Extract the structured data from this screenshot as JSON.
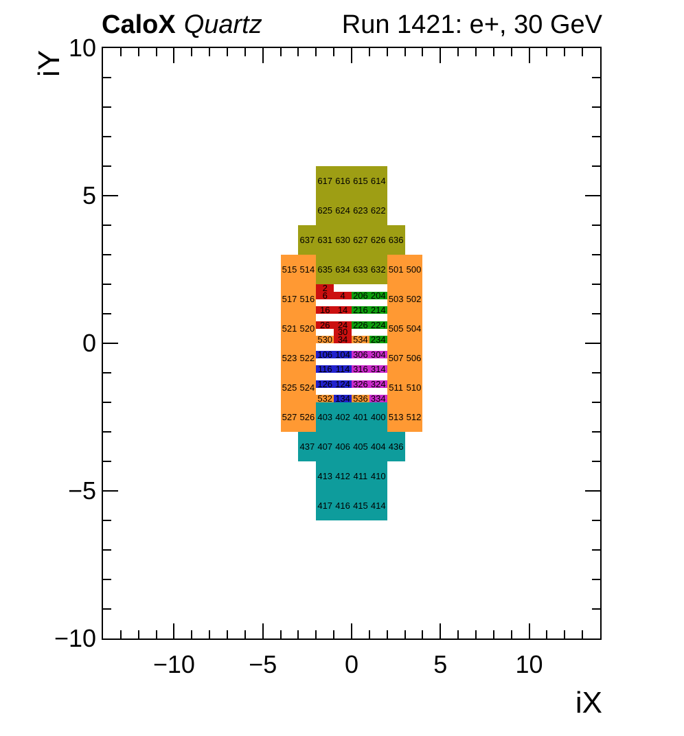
{
  "header": {
    "brand_bold": "CaloX",
    "brand_italic": "Quartz",
    "run_label": "Run 1421: e+, 30 GeV"
  },
  "chart_data": {
    "type": "heatmap",
    "title": "CaloX Quartz",
    "subtitle": "Run 1421: e+, 30 GeV",
    "xlabel": "iX",
    "ylabel": "iY",
    "xlim": [
      -14,
      14
    ],
    "ylim": [
      -10,
      10
    ],
    "x_major_ticks": [
      -10,
      -5,
      0,
      5,
      10
    ],
    "y_major_ticks": [
      -10,
      -5,
      0,
      5,
      10
    ],
    "minor_tick_step": 1,
    "grid": false,
    "legend": "none",
    "palette": {
      "olive": "#9e9e14",
      "orange": "#ff9933",
      "red": "#cc1010",
      "green": "#0d9f0d",
      "blue": "#2121cd",
      "magenta": "#cc29cc",
      "teal": "#0e9c9c"
    },
    "cells": [
      {
        "id": "617",
        "x": -2,
        "y": 6,
        "w": 1,
        "h": 1,
        "color": "olive"
      },
      {
        "id": "616",
        "x": -1,
        "y": 6,
        "w": 1,
        "h": 1,
        "color": "olive"
      },
      {
        "id": "615",
        "x": 0,
        "y": 6,
        "w": 1,
        "h": 1,
        "color": "olive"
      },
      {
        "id": "614",
        "x": 1,
        "y": 6,
        "w": 1,
        "h": 1,
        "color": "olive"
      },
      {
        "id": "625",
        "x": -2,
        "y": 5,
        "w": 1,
        "h": 1,
        "color": "olive"
      },
      {
        "id": "624",
        "x": -1,
        "y": 5,
        "w": 1,
        "h": 1,
        "color": "olive"
      },
      {
        "id": "623",
        "x": 0,
        "y": 5,
        "w": 1,
        "h": 1,
        "color": "olive"
      },
      {
        "id": "622",
        "x": 1,
        "y": 5,
        "w": 1,
        "h": 1,
        "color": "olive"
      },
      {
        "id": "637",
        "x": -3,
        "y": 4,
        "w": 1,
        "h": 1,
        "color": "olive"
      },
      {
        "id": "631",
        "x": -2,
        "y": 4,
        "w": 1,
        "h": 1,
        "color": "olive"
      },
      {
        "id": "630",
        "x": -1,
        "y": 4,
        "w": 1,
        "h": 1,
        "color": "olive"
      },
      {
        "id": "627",
        "x": 0,
        "y": 4,
        "w": 1,
        "h": 1,
        "color": "olive"
      },
      {
        "id": "626",
        "x": 1,
        "y": 4,
        "w": 1,
        "h": 1,
        "color": "olive"
      },
      {
        "id": "636",
        "x": 2,
        "y": 4,
        "w": 1,
        "h": 1,
        "color": "olive"
      },
      {
        "id": "635",
        "x": -2,
        "y": 3,
        "w": 1,
        "h": 1,
        "color": "olive"
      },
      {
        "id": "634",
        "x": -1,
        "y": 3,
        "w": 1,
        "h": 1,
        "color": "olive"
      },
      {
        "id": "633",
        "x": 0,
        "y": 3,
        "w": 1,
        "h": 1,
        "color": "olive"
      },
      {
        "id": "632",
        "x": 1,
        "y": 3,
        "w": 1,
        "h": 1,
        "color": "olive"
      },
      {
        "id": "515",
        "x": -4,
        "y": 3,
        "w": 1,
        "h": 1,
        "color": "orange"
      },
      {
        "id": "514",
        "x": -3,
        "y": 3,
        "w": 1,
        "h": 1,
        "color": "orange"
      },
      {
        "id": "501",
        "x": 2,
        "y": 3,
        "w": 1,
        "h": 1,
        "color": "orange"
      },
      {
        "id": "500",
        "x": 3,
        "y": 3,
        "w": 1,
        "h": 1,
        "color": "orange"
      },
      {
        "id": "517",
        "x": -4,
        "y": 2,
        "w": 1,
        "h": 1,
        "color": "orange"
      },
      {
        "id": "516",
        "x": -3,
        "y": 2,
        "w": 1,
        "h": 1,
        "color": "orange"
      },
      {
        "id": "503",
        "x": 2,
        "y": 2,
        "w": 1,
        "h": 1,
        "color": "orange"
      },
      {
        "id": "502",
        "x": 3,
        "y": 2,
        "w": 1,
        "h": 1,
        "color": "orange"
      },
      {
        "id": "521",
        "x": -4,
        "y": 1,
        "w": 1,
        "h": 1,
        "color": "orange"
      },
      {
        "id": "520",
        "x": -3,
        "y": 1,
        "w": 1,
        "h": 1,
        "color": "orange"
      },
      {
        "id": "505",
        "x": 2,
        "y": 1,
        "w": 1,
        "h": 1,
        "color": "orange"
      },
      {
        "id": "504",
        "x": 3,
        "y": 1,
        "w": 1,
        "h": 1,
        "color": "orange"
      },
      {
        "id": "523",
        "x": -4,
        "y": 0,
        "w": 1,
        "h": 1,
        "color": "orange"
      },
      {
        "id": "522",
        "x": -3,
        "y": 0,
        "w": 1,
        "h": 1,
        "color": "orange"
      },
      {
        "id": "507",
        "x": 2,
        "y": 0,
        "w": 1,
        "h": 1,
        "color": "orange"
      },
      {
        "id": "506",
        "x": 3,
        "y": 0,
        "w": 1,
        "h": 1,
        "color": "orange"
      },
      {
        "id": "525",
        "x": -4,
        "y": -1,
        "w": 1,
        "h": 1,
        "color": "orange"
      },
      {
        "id": "524",
        "x": -3,
        "y": -1,
        "w": 1,
        "h": 1,
        "color": "orange"
      },
      {
        "id": "511",
        "x": 2,
        "y": -1,
        "w": 1,
        "h": 1,
        "color": "orange"
      },
      {
        "id": "510",
        "x": 3,
        "y": -1,
        "w": 1,
        "h": 1,
        "color": "orange"
      },
      {
        "id": "527",
        "x": -4,
        "y": -2,
        "w": 1,
        "h": 1,
        "color": "orange"
      },
      {
        "id": "526",
        "x": -3,
        "y": -2,
        "w": 1,
        "h": 1,
        "color": "orange"
      },
      {
        "id": "513",
        "x": 2,
        "y": -2,
        "w": 1,
        "h": 1,
        "color": "orange"
      },
      {
        "id": "512",
        "x": 3,
        "y": -2,
        "w": 1,
        "h": 1,
        "color": "orange"
      },
      {
        "id": "403",
        "x": -2,
        "y": -2,
        "w": 1,
        "h": 1,
        "color": "teal"
      },
      {
        "id": "402",
        "x": -1,
        "y": -2,
        "w": 1,
        "h": 1,
        "color": "teal"
      },
      {
        "id": "401",
        "x": 0,
        "y": -2,
        "w": 1,
        "h": 1,
        "color": "teal"
      },
      {
        "id": "400",
        "x": 1,
        "y": -2,
        "w": 1,
        "h": 1,
        "color": "teal"
      },
      {
        "id": "437",
        "x": -3,
        "y": -3,
        "w": 1,
        "h": 1,
        "color": "teal"
      },
      {
        "id": "407",
        "x": -2,
        "y": -3,
        "w": 1,
        "h": 1,
        "color": "teal"
      },
      {
        "id": "406",
        "x": -1,
        "y": -3,
        "w": 1,
        "h": 1,
        "color": "teal"
      },
      {
        "id": "405",
        "x": 0,
        "y": -3,
        "w": 1,
        "h": 1,
        "color": "teal"
      },
      {
        "id": "404",
        "x": 1,
        "y": -3,
        "w": 1,
        "h": 1,
        "color": "teal"
      },
      {
        "id": "436",
        "x": 2,
        "y": -3,
        "w": 1,
        "h": 1,
        "color": "teal"
      },
      {
        "id": "413",
        "x": -2,
        "y": -4,
        "w": 1,
        "h": 1,
        "color": "teal"
      },
      {
        "id": "412",
        "x": -1,
        "y": -4,
        "w": 1,
        "h": 1,
        "color": "teal"
      },
      {
        "id": "411",
        "x": 0,
        "y": -4,
        "w": 1,
        "h": 1,
        "color": "teal"
      },
      {
        "id": "410",
        "x": 1,
        "y": -4,
        "w": 1,
        "h": 1,
        "color": "teal"
      },
      {
        "id": "417",
        "x": -2,
        "y": -5,
        "w": 1,
        "h": 1,
        "color": "teal"
      },
      {
        "id": "416",
        "x": -1,
        "y": -5,
        "w": 1,
        "h": 1,
        "color": "teal"
      },
      {
        "id": "415",
        "x": 0,
        "y": -5,
        "w": 1,
        "h": 1,
        "color": "teal"
      },
      {
        "id": "414",
        "x": 1,
        "y": -5,
        "w": 1,
        "h": 1,
        "color": "teal"
      },
      {
        "id": "2",
        "x": -2,
        "y": 2,
        "w": 1,
        "h": 0.25,
        "color": "red"
      },
      {
        "id": "6",
        "x": -2,
        "y": 1.75,
        "w": 1,
        "h": 0.25,
        "color": "red"
      },
      {
        "id": "4",
        "x": -1,
        "y": 1.75,
        "w": 1,
        "h": 0.25,
        "color": "red"
      },
      {
        "id": "206",
        "x": 0,
        "y": 1.75,
        "w": 1,
        "h": 0.25,
        "color": "green"
      },
      {
        "id": "204",
        "x": 1,
        "y": 1.75,
        "w": 1,
        "h": 0.25,
        "color": "green"
      },
      {
        "id": "16",
        "x": -2,
        "y": 1.25,
        "w": 1,
        "h": 0.25,
        "color": "red"
      },
      {
        "id": "14",
        "x": -1,
        "y": 1.25,
        "w": 1,
        "h": 0.25,
        "color": "red"
      },
      {
        "id": "216",
        "x": 0,
        "y": 1.25,
        "w": 1,
        "h": 0.25,
        "color": "green"
      },
      {
        "id": "214",
        "x": 1,
        "y": 1.25,
        "w": 1,
        "h": 0.25,
        "color": "green"
      },
      {
        "id": "26",
        "x": -2,
        "y": 0.75,
        "w": 1,
        "h": 0.25,
        "color": "red"
      },
      {
        "id": "24",
        "x": -1,
        "y": 0.75,
        "w": 1,
        "h": 0.25,
        "color": "red"
      },
      {
        "id": "226",
        "x": 0,
        "y": 0.75,
        "w": 1,
        "h": 0.25,
        "color": "green"
      },
      {
        "id": "224",
        "x": 1,
        "y": 0.75,
        "w": 1,
        "h": 0.25,
        "color": "green"
      },
      {
        "id": "30",
        "x": -1,
        "y": 0.5,
        "w": 1,
        "h": 0.25,
        "color": "red"
      },
      {
        "id": "530",
        "x": -2,
        "y": 0.25,
        "w": 1,
        "h": 0.25,
        "color": "orange"
      },
      {
        "id": "34",
        "x": -1,
        "y": 0.25,
        "w": 1,
        "h": 0.25,
        "color": "red"
      },
      {
        "id": "534",
        "x": 0,
        "y": 0.25,
        "w": 1,
        "h": 0.25,
        "color": "orange"
      },
      {
        "id": "234",
        "x": 1,
        "y": 0.25,
        "w": 1,
        "h": 0.25,
        "color": "green"
      },
      {
        "id": "106",
        "x": -2,
        "y": -0.25,
        "w": 1,
        "h": 0.25,
        "color": "blue"
      },
      {
        "id": "104",
        "x": -1,
        "y": -0.25,
        "w": 1,
        "h": 0.25,
        "color": "blue"
      },
      {
        "id": "306",
        "x": 0,
        "y": -0.25,
        "w": 1,
        "h": 0.25,
        "color": "magenta"
      },
      {
        "id": "304",
        "x": 1,
        "y": -0.25,
        "w": 1,
        "h": 0.25,
        "color": "magenta"
      },
      {
        "id": "116",
        "x": -2,
        "y": -0.75,
        "w": 1,
        "h": 0.25,
        "color": "blue"
      },
      {
        "id": "114",
        "x": -1,
        "y": -0.75,
        "w": 1,
        "h": 0.25,
        "color": "blue"
      },
      {
        "id": "316",
        "x": 0,
        "y": -0.75,
        "w": 1,
        "h": 0.25,
        "color": "magenta"
      },
      {
        "id": "314",
        "x": 1,
        "y": -0.75,
        "w": 1,
        "h": 0.25,
        "color": "magenta"
      },
      {
        "id": "126",
        "x": -2,
        "y": -1.25,
        "w": 1,
        "h": 0.25,
        "color": "blue"
      },
      {
        "id": "124",
        "x": -1,
        "y": -1.25,
        "w": 1,
        "h": 0.25,
        "color": "blue"
      },
      {
        "id": "326",
        "x": 0,
        "y": -1.25,
        "w": 1,
        "h": 0.25,
        "color": "magenta"
      },
      {
        "id": "324",
        "x": 1,
        "y": -1.25,
        "w": 1,
        "h": 0.25,
        "color": "magenta"
      },
      {
        "id": "532",
        "x": -2,
        "y": -1.75,
        "w": 1,
        "h": 0.25,
        "color": "orange"
      },
      {
        "id": "134",
        "x": -1,
        "y": -1.75,
        "w": 1,
        "h": 0.25,
        "color": "blue"
      },
      {
        "id": "536",
        "x": 0,
        "y": -1.75,
        "w": 1,
        "h": 0.25,
        "color": "orange"
      },
      {
        "id": "334",
        "x": 1,
        "y": -1.75,
        "w": 1,
        "h": 0.25,
        "color": "magenta"
      }
    ]
  }
}
